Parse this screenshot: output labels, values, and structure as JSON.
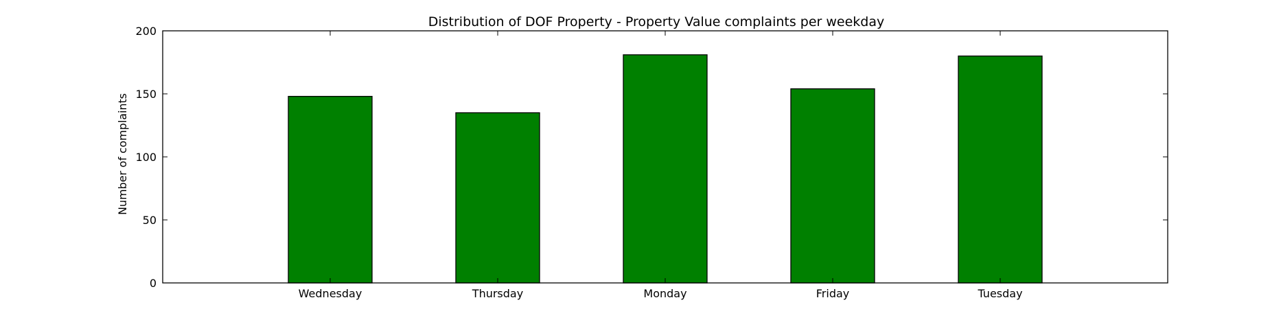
{
  "chart_data": {
    "type": "bar",
    "title": "Distribution of  DOF Property - Property Value complaints per weekday",
    "xlabel": "",
    "ylabel": "Number of complaints",
    "categories": [
      "Wednesday",
      "Thursday",
      "Monday",
      "Friday",
      "Tuesday"
    ],
    "values": [
      148,
      135,
      181,
      154,
      180
    ],
    "ylim": [
      0,
      200
    ],
    "yticks": [
      0,
      50,
      100,
      150,
      200
    ],
    "grid": false,
    "legend": "none",
    "bar_color": "#008000",
    "edge_color": "#000000"
  }
}
